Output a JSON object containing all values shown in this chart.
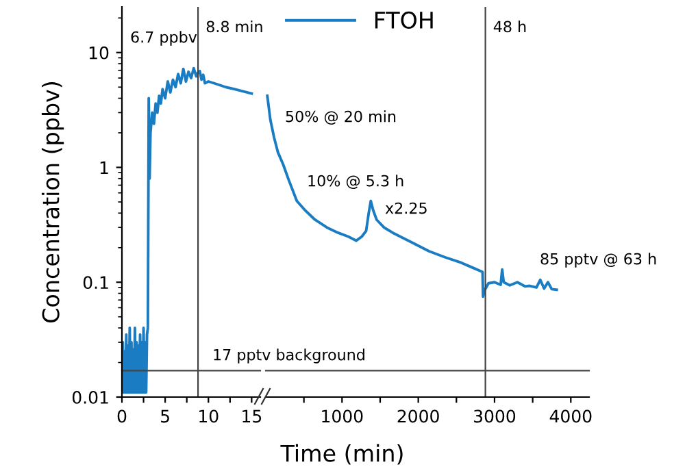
{
  "chart_data": [
    {
      "type": "line",
      "ylabel": "Concentration (ppbv)",
      "xlim": [
        0,
        16
      ],
      "ylim": [
        0.01,
        25
      ],
      "xticks": [
        0,
        5,
        10,
        15,
        {
          "value": 2.5,
          "label": null
        },
        {
          "value": 7.5,
          "label": null
        },
        {
          "value": 12.5,
          "label": null
        }
      ],
      "yticks": [
        {
          "value": 0.01,
          "label": "0.01"
        },
        {
          "value": 0.1,
          "label": "0.1"
        },
        {
          "value": 1,
          "label": "1"
        },
        {
          "value": 10,
          "label": "10"
        }
      ],
      "log": true,
      "grid": false,
      "legend": false,
      "line_style": "solid",
      "marker": "none",
      "series": [
        {
          "color": "#1a7dc4",
          "x": [
            0,
            0.1,
            0.2,
            0.3,
            0.4,
            0.5,
            0.6,
            0.7,
            0.8,
            0.9,
            1.0,
            1.1,
            1.2,
            1.3,
            1.4,
            1.5,
            1.6,
            1.7,
            1.8,
            1.9,
            2.0,
            2.1,
            2.2,
            2.3,
            2.4,
            2.5,
            2.6,
            2.7,
            2.8,
            2.9,
            3.0,
            3.1,
            3.2,
            3.3,
            3.5,
            3.7,
            3.9,
            4.1,
            4.3,
            4.5,
            4.7,
            5.0,
            5.3,
            5.6,
            5.9,
            6.2,
            6.5,
            6.8,
            7.1,
            7.4,
            7.7,
            8.0,
            8.3,
            8.6,
            8.8,
            9.0,
            9.2,
            9.4,
            9.6,
            10.0,
            11.0,
            12.0,
            13.0,
            14.0,
            15.0
          ],
          "values": [
            0.011,
            0.03,
            0.011,
            0.025,
            0.011,
            0.035,
            0.011,
            0.028,
            0.011,
            0.04,
            0.011,
            0.03,
            0.011,
            0.026,
            0.011,
            0.04,
            0.011,
            0.03,
            0.011,
            0.028,
            0.011,
            0.035,
            0.011,
            0.03,
            0.011,
            0.04,
            0.011,
            0.03,
            0.011,
            0.035,
            0.04,
            4.0,
            0.8,
            2.0,
            3.0,
            2.4,
            3.6,
            3.0,
            4.2,
            3.6,
            4.8,
            4.0,
            5.6,
            4.5,
            5.8,
            5.0,
            6.5,
            5.4,
            7.2,
            5.6,
            6.8,
            6.0,
            7.3,
            6.2,
            6.7,
            6.9,
            5.8,
            6.4,
            5.4,
            5.6,
            5.3,
            5.0,
            4.8,
            4.6,
            4.4
          ]
        }
      ],
      "ref_lines": [
        {
          "axis": "x",
          "value": 8.8,
          "label": "8.8 min",
          "color": "#444444"
        },
        {
          "axis": "y",
          "value": 0.017,
          "label": "17 pptv background",
          "color": "#444444"
        }
      ],
      "annotations": [
        "6.7 ppbv"
      ]
    },
    {
      "type": "line",
      "xlim": [
        0,
        4240
      ],
      "ylim": [
        0.01,
        25
      ],
      "log": true,
      "tick_labels": "x",
      "grid": false,
      "legend": "top left",
      "line_style": "solid",
      "marker": "none",
      "xticks": [
        1000,
        2000,
        3000,
        4000,
        {
          "value": 500,
          "label": null
        },
        {
          "value": 1500,
          "label": null
        },
        {
          "value": 2500,
          "label": null
        },
        {
          "value": 3500,
          "label": null
        }
      ],
      "xlabel": "Time (min)",
      "series": [
        {
          "name": "FTOH",
          "color": "#1a7dc4",
          "x": [
            20,
            60,
            108,
            160,
            228,
            300,
            407,
            520,
            646,
            800,
            946,
            1080,
            1185,
            1260,
            1316,
            1350,
            1377,
            1410,
            1454,
            1550,
            1664,
            1900,
            2142,
            2350,
            2562,
            2700,
            2843,
            2849,
            2870,
            2921,
            3000,
            3080,
            3100,
            3120,
            3200,
            3300,
            3400,
            3460,
            3550,
            3600,
            3650,
            3700,
            3750,
            3815
          ],
          "values": [
            4.2,
            2.6,
            1.83,
            1.35,
            1.06,
            0.78,
            0.51,
            0.42,
            0.35,
            0.3,
            0.27,
            0.25,
            0.23,
            0.25,
            0.28,
            0.4,
            0.51,
            0.42,
            0.35,
            0.3,
            0.27,
            0.225,
            0.186,
            0.165,
            0.148,
            0.135,
            0.123,
            0.075,
            0.085,
            0.098,
            0.1,
            0.095,
            0.129,
            0.1,
            0.094,
            0.1,
            0.092,
            0.093,
            0.09,
            0.105,
            0.088,
            0.1,
            0.087,
            0.086
          ]
        }
      ],
      "ref_lines": [
        {
          "axis": "x",
          "value": 2880,
          "label": "48 h",
          "color": "#444444"
        },
        {
          "axis": "y",
          "value": 0.017,
          "color": "#444444"
        }
      ],
      "annotations": [
        "50% @ 20 min",
        "10% @ 5.3 h",
        "x2.25",
        "85 pptv @ 63 h"
      ]
    }
  ]
}
